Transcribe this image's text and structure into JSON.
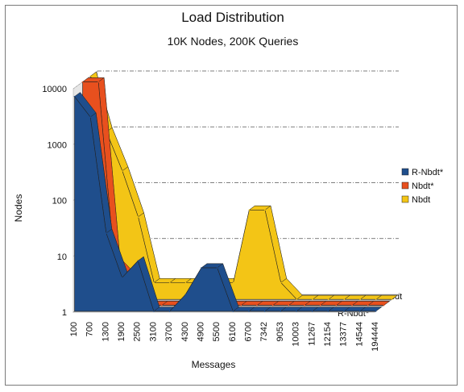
{
  "chart_data": {
    "type": "bar",
    "subtype": "3d-area-log",
    "title": "Load Distribution",
    "subtitle": "10K Nodes, 200K Queries",
    "xlabel": "Messages",
    "ylabel": "Nodes",
    "y_scale": "log",
    "ylim": [
      1,
      10000
    ],
    "y_ticks": [
      "1",
      "10",
      "100",
      "1000",
      "10000"
    ],
    "categories": [
      "100",
      "700",
      "1300",
      "1900",
      "2500",
      "3100",
      "3700",
      "4300",
      "4900",
      "5500",
      "6100",
      "6700",
      "7342",
      "9053",
      "10003",
      "11267",
      "12154",
      "13377",
      "14544",
      "194444"
    ],
    "series_axis_labels": [
      "R-Nbdt*",
      "Nbdt"
    ],
    "legend_position": "right",
    "grid": true,
    "series": [
      {
        "name": "R-Nbdt*",
        "color": "#1f4e8c",
        "values": [
          7000,
          3000,
          25,
          4,
          8,
          1,
          1,
          2,
          6,
          6,
          1,
          1,
          1,
          1,
          1,
          1,
          1,
          1,
          1,
          1
        ]
      },
      {
        "name": "Nbdt*",
        "color": "#e8501e",
        "values": [
          10000,
          10000,
          6,
          3,
          1,
          1,
          1,
          1,
          1,
          1,
          1,
          1,
          1,
          1,
          1,
          1,
          1,
          1,
          1,
          1
        ]
      },
      {
        "name": "Nbdt",
        "color": "#f3c516",
        "values": [
          10000,
          1000,
          200,
          30,
          2,
          2,
          2,
          2,
          2,
          2,
          40,
          40,
          2,
          1,
          1,
          1,
          1,
          1,
          1,
          1
        ]
      }
    ]
  }
}
